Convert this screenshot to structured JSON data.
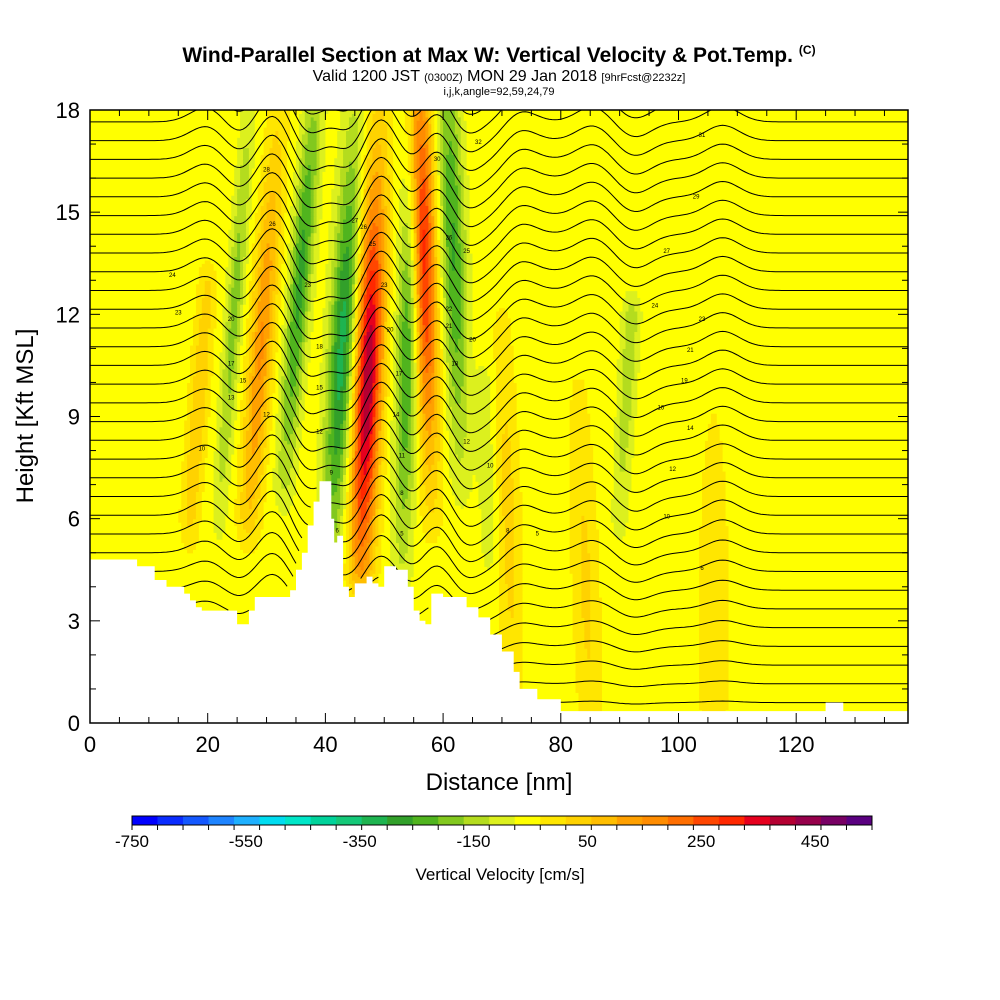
{
  "title": {
    "main": "Wind-Parallel Section at Max W: Vertical Velocity & Pot.Temp.",
    "tag": "(C)",
    "valid_prefix": "Valid 1200 JST",
    "valid_utc": "(0300Z)",
    "valid_date": "MON 29 Jan 2018",
    "forecast": "[9hrFcst@2232z]",
    "location": "i,j,k,angle=92,59,24,79"
  },
  "chart_data": {
    "type": "heatmap",
    "xlabel": "Distance [nm]",
    "ylabel": "Height [Kft MSL]",
    "xlim": [
      0,
      139
    ],
    "ylim": [
      0,
      18
    ],
    "xticks": [
      0,
      20,
      40,
      60,
      80,
      100,
      120
    ],
    "yticks": [
      0,
      3,
      6,
      9,
      12,
      15,
      18
    ],
    "terrain": {
      "x": [
        0,
        7,
        8,
        11,
        13,
        16,
        17,
        18,
        19,
        24,
        25,
        27,
        28,
        34,
        35,
        36,
        37,
        38,
        39,
        40,
        41,
        41.5,
        42,
        43,
        44,
        45,
        47,
        48,
        49,
        50,
        52,
        54,
        55,
        56,
        57,
        58,
        60,
        64,
        66,
        68,
        70,
        72,
        73,
        76,
        80,
        124,
        125,
        127,
        128,
        139
      ],
      "kft": [
        4.8,
        4.8,
        4.6,
        4.2,
        4.0,
        3.8,
        3.6,
        3.4,
        3.3,
        3.3,
        2.9,
        3.3,
        3.7,
        3.9,
        4.5,
        5.0,
        5.8,
        6.5,
        7.1,
        7.1,
        6.0,
        5.3,
        5.5,
        4.0,
        3.7,
        4.1,
        4.3,
        4.1,
        4.0,
        4.6,
        4.5,
        4.0,
        3.3,
        3.0,
        2.9,
        3.8,
        3.7,
        3.4,
        3.1,
        2.6,
        2.1,
        1.5,
        1.0,
        0.7,
        0.35,
        0.35,
        0.6,
        0.6,
        0.35,
        0.35
      ]
    },
    "w_features": [
      {
        "x": 46,
        "x_top": 49,
        "h_low": 4.5,
        "h_high": 18,
        "amp": 520,
        "width": 2.3,
        "peak_h": 10
      },
      {
        "x": 41,
        "x_top": 45,
        "h_low": 5,
        "h_high": 18,
        "amp": -300,
        "width": 2.2,
        "peak_h": 11
      },
      {
        "x": 53,
        "x_top": 55,
        "h_low": 4.5,
        "h_high": 18,
        "amp": -230,
        "width": 1.9,
        "peak_h": 11
      },
      {
        "x": 58,
        "x_top": 56,
        "h_low": 6,
        "h_high": 18,
        "amp": 420,
        "width": 2.0,
        "peak_h": 14
      },
      {
        "x": 63,
        "x_top": 61,
        "h_low": 7,
        "h_high": 18,
        "amp": -230,
        "width": 2.0,
        "peak_h": 14
      },
      {
        "x": 33,
        "x_top": 38,
        "h_low": 7,
        "h_high": 18,
        "amp": -240,
        "width": 1.8,
        "peak_h": 13
      },
      {
        "x": 27,
        "x_top": 32,
        "h_low": 6,
        "h_high": 18,
        "amp": 230,
        "width": 2.0,
        "peak_h": 11
      },
      {
        "x": 22,
        "x_top": 27,
        "h_low": 6,
        "h_high": 18,
        "amp": -150,
        "width": 1.4,
        "peak_h": 12
      },
      {
        "x": 17,
        "x_top": 20,
        "h_low": 6,
        "h_high": 13,
        "amp": 120,
        "width": 1.6,
        "peak_h": 9
      },
      {
        "x": 72,
        "x_top": 70,
        "h_low": 1,
        "h_high": 12,
        "amp": 95,
        "width": 2.0,
        "peak_h": 6
      },
      {
        "x": 85,
        "x_top": 83,
        "h_low": 0.5,
        "h_high": 10,
        "amp": 85,
        "width": 2.2,
        "peak_h": 4
      },
      {
        "x": 90,
        "x_top": 92,
        "h_low": 6,
        "h_high": 12,
        "amp": -110,
        "width": 1.5,
        "peak_h": 11
      },
      {
        "x": 106,
        "x_top": 106,
        "h_low": 0.5,
        "h_high": 10,
        "amp": 70,
        "width": 2.5,
        "peak_h": 3
      },
      {
        "x": 68,
        "x_top": 67,
        "h_low": 5,
        "h_high": 10,
        "amp": -60,
        "width": 1.6,
        "peak_h": 8
      }
    ],
    "theta_contour_labels": [
      {
        "x": 14,
        "y": 13.1,
        "text": "24"
      },
      {
        "x": 15,
        "y": 12.0,
        "text": "23"
      },
      {
        "x": 24,
        "y": 11.8,
        "text": "20"
      },
      {
        "x": 24,
        "y": 10.5,
        "text": "17"
      },
      {
        "x": 26,
        "y": 10.0,
        "text": "15"
      },
      {
        "x": 24,
        "y": 9.5,
        "text": "13"
      },
      {
        "x": 30,
        "y": 9.0,
        "text": "12"
      },
      {
        "x": 19,
        "y": 8.0,
        "text": "10"
      },
      {
        "x": 30,
        "y": 16.2,
        "text": "28"
      },
      {
        "x": 31,
        "y": 14.6,
        "text": "26"
      },
      {
        "x": 37,
        "y": 12.8,
        "text": "23"
      },
      {
        "x": 39,
        "y": 11.0,
        "text": "18"
      },
      {
        "x": 39,
        "y": 9.8,
        "text": "15"
      },
      {
        "x": 39,
        "y": 8.5,
        "text": "12"
      },
      {
        "x": 41,
        "y": 7.3,
        "text": "9"
      },
      {
        "x": 42,
        "y": 5.6,
        "text": "6"
      },
      {
        "x": 45,
        "y": 14.7,
        "text": "27"
      },
      {
        "x": 46.5,
        "y": 14.5,
        "text": "26"
      },
      {
        "x": 48,
        "y": 14.0,
        "text": "25"
      },
      {
        "x": 50,
        "y": 12.8,
        "text": "23"
      },
      {
        "x": 51,
        "y": 11.5,
        "text": "20"
      },
      {
        "x": 52.5,
        "y": 10.2,
        "text": "17"
      },
      {
        "x": 52,
        "y": 9.0,
        "text": "14"
      },
      {
        "x": 53,
        "y": 7.8,
        "text": "11"
      },
      {
        "x": 53,
        "y": 6.7,
        "text": "8"
      },
      {
        "x": 53,
        "y": 5.5,
        "text": "5"
      },
      {
        "x": 59,
        "y": 16.5,
        "text": "30"
      },
      {
        "x": 61,
        "y": 14.2,
        "text": "26"
      },
      {
        "x": 64,
        "y": 13.8,
        "text": "25"
      },
      {
        "x": 61,
        "y": 12.1,
        "text": "22"
      },
      {
        "x": 61,
        "y": 11.6,
        "text": "21"
      },
      {
        "x": 65,
        "y": 11.2,
        "text": "20"
      },
      {
        "x": 62,
        "y": 10.5,
        "text": "18"
      },
      {
        "x": 64,
        "y": 8.2,
        "text": "12"
      },
      {
        "x": 68,
        "y": 7.5,
        "text": "10"
      },
      {
        "x": 71,
        "y": 5.6,
        "text": "8"
      },
      {
        "x": 76,
        "y": 5.5,
        "text": "5"
      },
      {
        "x": 66,
        "y": 17.0,
        "text": "32"
      },
      {
        "x": 104,
        "y": 17.2,
        "text": "31"
      },
      {
        "x": 103,
        "y": 15.4,
        "text": "29"
      },
      {
        "x": 98,
        "y": 13.8,
        "text": "27"
      },
      {
        "x": 96,
        "y": 12.2,
        "text": "24"
      },
      {
        "x": 104,
        "y": 11.8,
        "text": "23"
      },
      {
        "x": 102,
        "y": 10.9,
        "text": "21"
      },
      {
        "x": 101,
        "y": 10.0,
        "text": "19"
      },
      {
        "x": 97,
        "y": 9.2,
        "text": "16"
      },
      {
        "x": 102,
        "y": 8.6,
        "text": "14"
      },
      {
        "x": 99,
        "y": 7.4,
        "text": "12"
      },
      {
        "x": 98,
        "y": 6.0,
        "text": "10"
      },
      {
        "x": 104,
        "y": 4.5,
        "text": "6"
      }
    ]
  },
  "colorbar": {
    "min": -750,
    "max": 550,
    "step": 50,
    "tick_values": [
      -750,
      -550,
      -350,
      -150,
      50,
      250,
      450
    ],
    "tick_labels": [
      "-750",
      "-550",
      "-350",
      "-150",
      "50",
      "250",
      "450"
    ],
    "title": "Vertical Velocity [cm/s]",
    "colors": [
      "#0000ff",
      "#0a2cff",
      "#1458ff",
      "#1e84ff",
      "#1eb0ff",
      "#00dcf0",
      "#00e6c8",
      "#00d29a",
      "#14c878",
      "#1eb450",
      "#32a02a",
      "#50b41e",
      "#82c81e",
      "#b4dc1e",
      "#dcf01e",
      "#ffff00",
      "#ffe600",
      "#ffd200",
      "#ffbe00",
      "#ffa000",
      "#ff8c00",
      "#ff6e00",
      "#ff4600",
      "#ff2800",
      "#e6001e",
      "#b40032",
      "#96004b",
      "#780064",
      "#5a0080"
    ]
  }
}
